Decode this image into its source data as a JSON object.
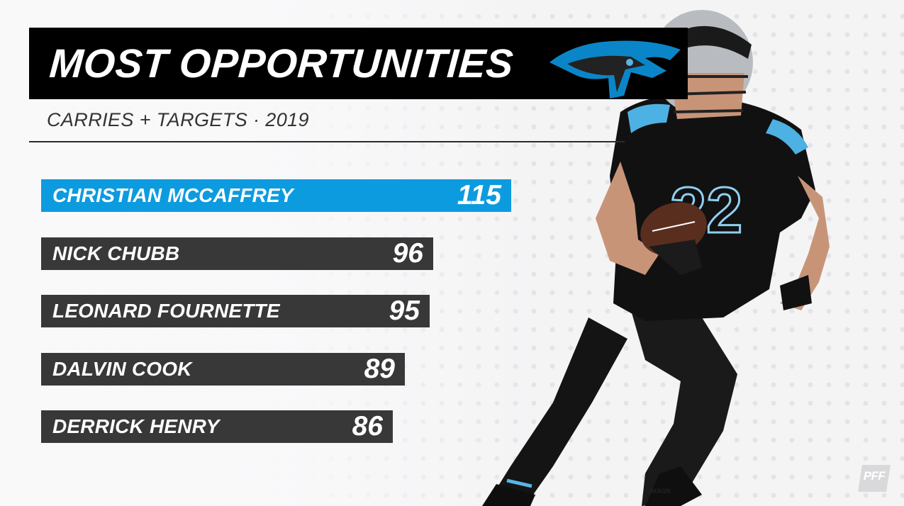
{
  "title": "MOST OPPORTUNITIES",
  "subtitle": "CARRIES + TARGETS · 2019",
  "credit": "IMAGN",
  "brand": "PFF",
  "colors": {
    "highlight": "#0d9be0",
    "bar": "#383838",
    "title_band": "#000000"
  },
  "icons": {
    "team_logo": "panthers-logo-icon",
    "brand_logo": "pff-logo-icon"
  },
  "chart_data": {
    "type": "bar",
    "orientation": "horizontal",
    "title": "MOST OPPORTUNITIES",
    "subtitle": "CARRIES + TARGETS · 2019",
    "categories": [
      "CHRISTIAN MCCAFFREY",
      "NICK CHUBB",
      "LEONARD FOURNETTE",
      "DALVIN COOK",
      "DERRICK HENRY"
    ],
    "values": [
      115,
      96,
      95,
      89,
      86
    ],
    "value_labels": [
      "115",
      "96",
      "95",
      "89",
      "86"
    ],
    "highlighted": "CHRISTIAN MCCAFFREY",
    "xlim": [
      0,
      115
    ],
    "grid": false
  }
}
